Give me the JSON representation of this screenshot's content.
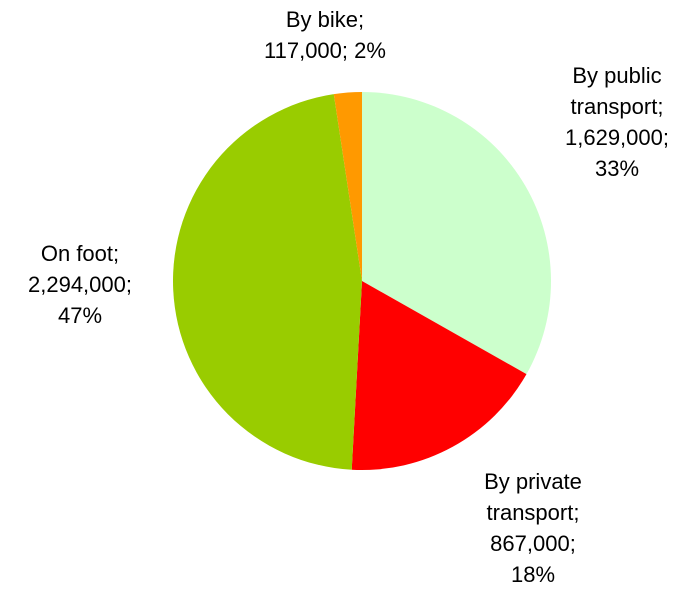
{
  "chart_data": {
    "type": "pie",
    "categories": [
      "By public transport",
      "By private transport",
      "On foot",
      "By bike"
    ],
    "values": [
      1629000,
      867000,
      2294000,
      117000
    ],
    "value_labels": [
      "1,629,000",
      "867,000",
      "2,294,000",
      "117,000"
    ],
    "percent_labels": [
      "33%",
      "18%",
      "47%",
      "2%"
    ],
    "separator": ";",
    "colors": [
      "#ccffcc",
      "#ff0000",
      "#99cc00",
      "#ff9900"
    ]
  }
}
